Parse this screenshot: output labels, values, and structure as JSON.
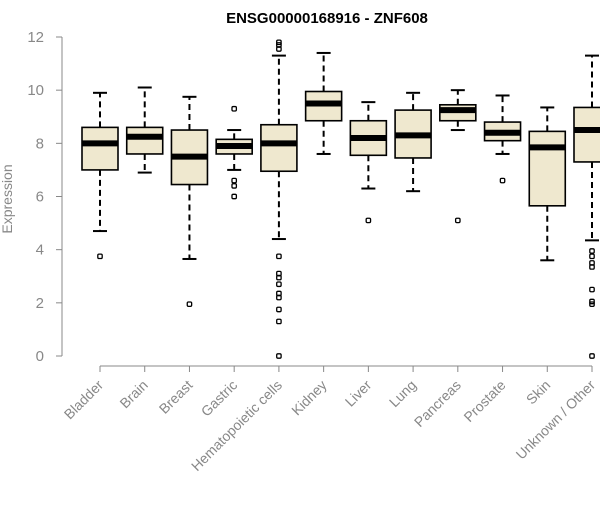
{
  "chart_data": {
    "type": "box",
    "title": "ENSG00000168916 - ZNF608",
    "xlabel": "",
    "ylabel": "Expression",
    "ylim": [
      0,
      12
    ],
    "yticks": [
      0,
      2,
      4,
      6,
      8,
      10,
      12
    ],
    "grid": false,
    "legend": "none",
    "colors": {
      "box_fill": "#efe8cf",
      "stroke": "#000000",
      "axis": "#888888"
    },
    "categories": [
      "Bladder",
      "Brain",
      "Breast",
      "Gastric",
      "Hematopoietic cells",
      "Kidney",
      "Liver",
      "Lung",
      "Pancreas",
      "Prostate",
      "Skin",
      "Unknown / Other"
    ],
    "boxes": [
      {
        "category": "Bladder",
        "whisker_low": 4.7,
        "q1": 7.0,
        "median": 8.0,
        "q3": 8.6,
        "whisker_high": 9.9,
        "outliers": [
          3.75
        ]
      },
      {
        "category": "Brain",
        "whisker_low": 6.9,
        "q1": 7.6,
        "median": 8.25,
        "q3": 8.6,
        "whisker_high": 10.1,
        "outliers": []
      },
      {
        "category": "Breast",
        "whisker_low": 3.65,
        "q1": 6.45,
        "median": 7.5,
        "q3": 8.5,
        "whisker_high": 9.75,
        "outliers": [
          1.95
        ]
      },
      {
        "category": "Gastric",
        "whisker_low": 7.0,
        "q1": 7.6,
        "median": 7.9,
        "q3": 8.15,
        "whisker_high": 8.5,
        "outliers": [
          9.3,
          6.6,
          6.4,
          6.0
        ]
      },
      {
        "category": "Hematopoietic cells",
        "whisker_low": 4.4,
        "q1": 6.95,
        "median": 8.0,
        "q3": 8.7,
        "whisker_high": 11.3,
        "outliers": [
          11.8,
          11.7,
          11.55,
          3.75,
          3.1,
          2.95,
          2.7,
          2.35,
          2.2,
          1.75,
          1.3,
          0.0
        ]
      },
      {
        "category": "Kidney",
        "whisker_low": 7.6,
        "q1": 8.85,
        "median": 9.5,
        "q3": 9.95,
        "whisker_high": 11.4,
        "outliers": []
      },
      {
        "category": "Liver",
        "whisker_low": 6.3,
        "q1": 7.55,
        "median": 8.2,
        "q3": 8.85,
        "whisker_high": 9.55,
        "outliers": [
          5.1
        ]
      },
      {
        "category": "Lung",
        "whisker_low": 6.2,
        "q1": 7.45,
        "median": 8.3,
        "q3": 9.25,
        "whisker_high": 9.9,
        "outliers": []
      },
      {
        "category": "Pancreas",
        "whisker_low": 8.5,
        "q1": 8.85,
        "median": 9.25,
        "q3": 9.45,
        "whisker_high": 10.0,
        "outliers": [
          5.1
        ]
      },
      {
        "category": "Prostate",
        "whisker_low": 7.6,
        "q1": 8.1,
        "median": 8.4,
        "q3": 8.8,
        "whisker_high": 9.8,
        "outliers": [
          6.6
        ]
      },
      {
        "category": "Skin",
        "whisker_low": 3.6,
        "q1": 5.65,
        "median": 7.85,
        "q3": 8.45,
        "whisker_high": 9.35,
        "outliers": []
      },
      {
        "category": "Unknown / Other",
        "whisker_low": 4.35,
        "q1": 7.3,
        "median": 8.5,
        "q3": 9.35,
        "whisker_high": 11.3,
        "outliers": [
          3.95,
          3.75,
          3.5,
          3.35,
          2.5,
          2.05,
          1.95,
          0.0
        ]
      }
    ]
  }
}
